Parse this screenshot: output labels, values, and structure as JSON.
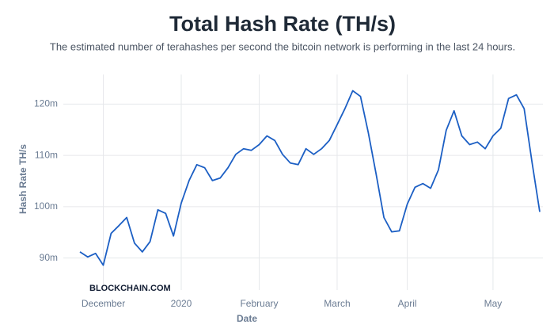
{
  "chart_data": {
    "type": "line",
    "title": "Total Hash Rate (TH/s)",
    "subtitle": "The estimated number of terahashes per second the bitcoin network is performing in the last 24 hours.",
    "watermark": "BLOCKCHAIN.COM",
    "x_label": "Date",
    "y_label": "Hash Rate TH/s",
    "color": "#1c5fc4",
    "grid": true,
    "categories": [
      null,
      null,
      null,
      "December",
      null,
      null,
      null,
      null,
      null,
      null,
      null,
      null,
      null,
      "2020",
      null,
      null,
      null,
      null,
      null,
      null,
      null,
      null,
      null,
      "February",
      null,
      null,
      null,
      null,
      null,
      null,
      null,
      null,
      null,
      "March",
      null,
      null,
      null,
      null,
      null,
      null,
      null,
      null,
      "April",
      null,
      null,
      null,
      null,
      null,
      null,
      null,
      null,
      null,
      null,
      "May",
      null,
      null,
      null,
      null,
      null,
      null
    ],
    "values": [
      91200000,
      90200000,
      90900000,
      88600000,
      94800000,
      96300000,
      97900000,
      92900000,
      91200000,
      93200000,
      99400000,
      98700000,
      94300000,
      100700000,
      105100000,
      108200000,
      107600000,
      105100000,
      105600000,
      107600000,
      110200000,
      111300000,
      111000000,
      112100000,
      113800000,
      112900000,
      110200000,
      108500000,
      108200000,
      111300000,
      110200000,
      111300000,
      112900000,
      116000000,
      119100000,
      122600000,
      121500000,
      114400000,
      106400000,
      97900000,
      95100000,
      95300000,
      100500000,
      103800000,
      104500000,
      103600000,
      107200000,
      114900000,
      118700000,
      113800000,
      112100000,
      112600000,
      111300000,
      113800000,
      115300000,
      121100000,
      121800000,
      119100000,
      108700000,
      99000000
    ],
    "ylim": [
      85000000,
      125000000
    ],
    "yticks": [
      {
        "value": 90000000,
        "label": "90m"
      },
      {
        "value": 100000000,
        "label": "100m"
      },
      {
        "value": 110000000,
        "label": "110m"
      },
      {
        "value": 120000000,
        "label": "120m"
      }
    ]
  }
}
